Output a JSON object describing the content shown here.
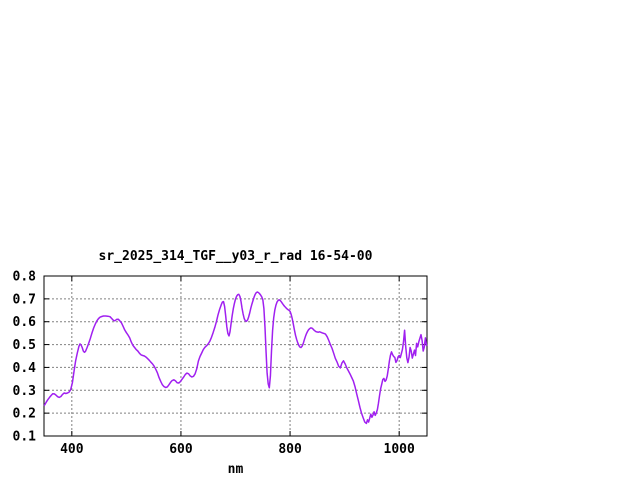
{
  "chart_data": {
    "type": "line",
    "title": "sr_2025_314_TGF__y03_r_rad 16-54-00",
    "xlabel": "nm",
    "ylabel": "",
    "xlim": [
      349,
      1051
    ],
    "ylim": [
      0.1,
      0.8
    ],
    "xticks": [
      400,
      600,
      800,
      1000
    ],
    "yticks": [
      0.1,
      0.2,
      0.3,
      0.4,
      0.5,
      0.6,
      0.7,
      0.8
    ],
    "grid": true,
    "legend_position": "none",
    "line_color": "#a020f0",
    "grid_color": "#808080",
    "background_color": "#ffffff",
    "series": [
      {
        "points": [
          [
            350,
            0.235
          ],
          [
            353,
            0.248
          ],
          [
            356,
            0.259
          ],
          [
            359,
            0.269
          ],
          [
            362,
            0.277
          ],
          [
            365,
            0.285
          ],
          [
            368,
            0.284
          ],
          [
            371,
            0.279
          ],
          [
            374,
            0.272
          ],
          [
            377,
            0.269
          ],
          [
            380,
            0.273
          ],
          [
            383,
            0.282
          ],
          [
            386,
            0.288
          ],
          [
            389,
            0.286
          ],
          [
            392,
            0.288
          ],
          [
            395,
            0.292
          ],
          [
            398,
            0.303
          ],
          [
            401,
            0.333
          ],
          [
            404,
            0.382
          ],
          [
            407,
            0.428
          ],
          [
            410,
            0.463
          ],
          [
            413,
            0.492
          ],
          [
            415,
            0.503
          ],
          [
            417,
            0.498
          ],
          [
            419,
            0.487
          ],
          [
            421,
            0.472
          ],
          [
            423,
            0.466
          ],
          [
            425,
            0.47
          ],
          [
            428,
            0.487
          ],
          [
            431,
            0.506
          ],
          [
            434,
            0.528
          ],
          [
            437,
            0.551
          ],
          [
            440,
            0.572
          ],
          [
            443,
            0.59
          ],
          [
            446,
            0.604
          ],
          [
            449,
            0.614
          ],
          [
            452,
            0.62
          ],
          [
            455,
            0.623
          ],
          [
            458,
            0.625
          ],
          [
            462,
            0.625
          ],
          [
            466,
            0.624
          ],
          [
            470,
            0.622
          ],
          [
            473,
            0.614
          ],
          [
            476,
            0.606
          ],
          [
            479,
            0.604
          ],
          [
            482,
            0.61
          ],
          [
            485,
            0.611
          ],
          [
            488,
            0.604
          ],
          [
            491,
            0.595
          ],
          [
            494,
            0.58
          ],
          [
            497,
            0.564
          ],
          [
            500,
            0.552
          ],
          [
            503,
            0.542
          ],
          [
            506,
            0.529
          ],
          [
            509,
            0.511
          ],
          [
            512,
            0.497
          ],
          [
            515,
            0.487
          ],
          [
            518,
            0.478
          ],
          [
            521,
            0.472
          ],
          [
            524,
            0.462
          ],
          [
            527,
            0.455
          ],
          [
            530,
            0.452
          ],
          [
            533,
            0.45
          ],
          [
            536,
            0.445
          ],
          [
            539,
            0.438
          ],
          [
            542,
            0.431
          ],
          [
            545,
            0.423
          ],
          [
            548,
            0.415
          ],
          [
            551,
            0.405
          ],
          [
            554,
            0.392
          ],
          [
            557,
            0.375
          ],
          [
            560,
            0.355
          ],
          [
            563,
            0.338
          ],
          [
            566,
            0.324
          ],
          [
            569,
            0.316
          ],
          [
            572,
            0.312
          ],
          [
            575,
            0.315
          ],
          [
            578,
            0.324
          ],
          [
            581,
            0.335
          ],
          [
            584,
            0.343
          ],
          [
            587,
            0.346
          ],
          [
            590,
            0.341
          ],
          [
            593,
            0.333
          ],
          [
            596,
            0.332
          ],
          [
            599,
            0.338
          ],
          [
            602,
            0.348
          ],
          [
            605,
            0.358
          ],
          [
            608,
            0.369
          ],
          [
            611,
            0.375
          ],
          [
            614,
            0.372
          ],
          [
            617,
            0.363
          ],
          [
            620,
            0.358
          ],
          [
            623,
            0.361
          ],
          [
            626,
            0.372
          ],
          [
            629,
            0.395
          ],
          [
            632,
            0.428
          ],
          [
            635,
            0.448
          ],
          [
            638,
            0.463
          ],
          [
            641,
            0.478
          ],
          [
            644,
            0.488
          ],
          [
            647,
            0.495
          ],
          [
            650,
            0.503
          ],
          [
            653,
            0.515
          ],
          [
            656,
            0.532
          ],
          [
            659,
            0.552
          ],
          [
            662,
            0.575
          ],
          [
            665,
            0.6
          ],
          [
            668,
            0.63
          ],
          [
            671,
            0.655
          ],
          [
            674,
            0.675
          ],
          [
            676,
            0.686
          ],
          [
            678,
            0.688
          ],
          [
            680,
            0.667
          ],
          [
            682,
            0.625
          ],
          [
            684,
            0.578
          ],
          [
            686,
            0.548
          ],
          [
            688,
            0.538
          ],
          [
            690,
            0.556
          ],
          [
            692,
            0.592
          ],
          [
            694,
            0.627
          ],
          [
            696,
            0.657
          ],
          [
            698,
            0.68
          ],
          [
            700,
            0.699
          ],
          [
            702,
            0.711
          ],
          [
            704,
            0.718
          ],
          [
            706,
            0.72
          ],
          [
            708,
            0.711
          ],
          [
            710,
            0.689
          ],
          [
            712,
            0.66
          ],
          [
            714,
            0.634
          ],
          [
            716,
            0.614
          ],
          [
            718,
            0.604
          ],
          [
            720,
            0.602
          ],
          [
            722,
            0.607
          ],
          [
            724,
            0.62
          ],
          [
            726,
            0.638
          ],
          [
            728,
            0.659
          ],
          [
            730,
            0.677
          ],
          [
            732,
            0.693
          ],
          [
            734,
            0.707
          ],
          [
            736,
            0.719
          ],
          [
            738,
            0.727
          ],
          [
            740,
            0.73
          ],
          [
            742,
            0.728
          ],
          [
            744,
            0.723
          ],
          [
            746,
            0.717
          ],
          [
            748,
            0.709
          ],
          [
            750,
            0.697
          ],
          [
            752,
            0.658
          ],
          [
            754,
            0.575
          ],
          [
            756,
            0.465
          ],
          [
            758,
            0.375
          ],
          [
            760,
            0.328
          ],
          [
            762,
            0.311
          ],
          [
            764,
            0.362
          ],
          [
            766,
            0.472
          ],
          [
            768,
            0.562
          ],
          [
            770,
            0.617
          ],
          [
            772,
            0.651
          ],
          [
            774,
            0.672
          ],
          [
            776,
            0.686
          ],
          [
            778,
            0.693
          ],
          [
            780,
            0.696
          ],
          [
            782,
            0.693
          ],
          [
            784,
            0.687
          ],
          [
            786,
            0.68
          ],
          [
            788,
            0.673
          ],
          [
            790,
            0.667
          ],
          [
            792,
            0.662
          ],
          [
            794,
            0.657
          ],
          [
            796,
            0.653
          ],
          [
            798,
            0.65
          ],
          [
            800,
            0.645
          ],
          [
            802,
            0.633
          ],
          [
            804,
            0.614
          ],
          [
            806,
            0.59
          ],
          [
            808,
            0.564
          ],
          [
            810,
            0.541
          ],
          [
            812,
            0.523
          ],
          [
            814,
            0.508
          ],
          [
            816,
            0.497
          ],
          [
            818,
            0.489
          ],
          [
            820,
            0.487
          ],
          [
            822,
            0.493
          ],
          [
            824,
            0.504
          ],
          [
            826,
            0.519
          ],
          [
            828,
            0.534
          ],
          [
            830,
            0.547
          ],
          [
            832,
            0.557
          ],
          [
            834,
            0.565
          ],
          [
            836,
            0.57
          ],
          [
            838,
            0.573
          ],
          [
            840,
            0.572
          ],
          [
            842,
            0.568
          ],
          [
            844,
            0.563
          ],
          [
            846,
            0.559
          ],
          [
            848,
            0.556
          ],
          [
            850,
            0.555
          ],
          [
            852,
            0.554
          ],
          [
            854,
            0.556
          ],
          [
            856,
            0.554
          ],
          [
            858,
            0.552
          ],
          [
            860,
            0.55
          ],
          [
            862,
            0.549
          ],
          [
            865,
            0.546
          ],
          [
            868,
            0.534
          ],
          [
            871,
            0.518
          ],
          [
            874,
            0.5
          ],
          [
            877,
            0.483
          ],
          [
            880,
            0.462
          ],
          [
            883,
            0.44
          ],
          [
            886,
            0.424
          ],
          [
            889,
            0.406
          ],
          [
            892,
            0.398
          ],
          [
            895,
            0.419
          ],
          [
            898,
            0.429
          ],
          [
            901,
            0.415
          ],
          [
            904,
            0.398
          ],
          [
            907,
            0.385
          ],
          [
            910,
            0.371
          ],
          [
            913,
            0.356
          ],
          [
            916,
            0.341
          ],
          [
            919,
            0.316
          ],
          [
            922,
            0.286
          ],
          [
            925,
            0.256
          ],
          [
            928,
            0.226
          ],
          [
            931,
            0.2
          ],
          [
            934,
            0.179
          ],
          [
            937,
            0.161
          ],
          [
            940,
            0.155
          ],
          [
            942,
            0.171
          ],
          [
            944,
            0.161
          ],
          [
            946,
            0.178
          ],
          [
            948,
            0.196
          ],
          [
            950,
            0.182
          ],
          [
            952,
            0.192
          ],
          [
            954,
            0.206
          ],
          [
            956,
            0.19
          ],
          [
            958,
            0.201
          ],
          [
            960,
            0.216
          ],
          [
            962,
            0.242
          ],
          [
            964,
            0.276
          ],
          [
            966,
            0.306
          ],
          [
            968,
            0.326
          ],
          [
            970,
            0.347
          ],
          [
            972,
            0.352
          ],
          [
            974,
            0.339
          ],
          [
            976,
            0.345
          ],
          [
            978,
            0.362
          ],
          [
            980,
            0.393
          ],
          [
            982,
            0.428
          ],
          [
            984,
            0.452
          ],
          [
            986,
            0.468
          ],
          [
            988,
            0.456
          ],
          [
            990,
            0.448
          ],
          [
            992,
            0.444
          ],
          [
            994,
            0.422
          ],
          [
            996,
            0.43
          ],
          [
            998,
            0.446
          ],
          [
            1000,
            0.452
          ],
          [
            1002,
            0.443
          ],
          [
            1004,
            0.461
          ],
          [
            1006,
            0.478
          ],
          [
            1008,
            0.512
          ],
          [
            1010,
            0.563
          ],
          [
            1012,
            0.492
          ],
          [
            1014,
            0.442
          ],
          [
            1016,
            0.421
          ],
          [
            1018,
            0.444
          ],
          [
            1020,
            0.487
          ],
          [
            1022,
            0.472
          ],
          [
            1024,
            0.441
          ],
          [
            1026,
            0.458
          ],
          [
            1028,
            0.476
          ],
          [
            1030,
            0.452
          ],
          [
            1032,
            0.505
          ],
          [
            1034,
            0.49
          ],
          [
            1036,
            0.512
          ],
          [
            1038,
            0.528
          ],
          [
            1040,
            0.543
          ],
          [
            1042,
            0.518
          ],
          [
            1044,
            0.472
          ],
          [
            1046,
            0.49
          ],
          [
            1048,
            0.529
          ],
          [
            1050,
            0.497
          ]
        ]
      }
    ]
  }
}
